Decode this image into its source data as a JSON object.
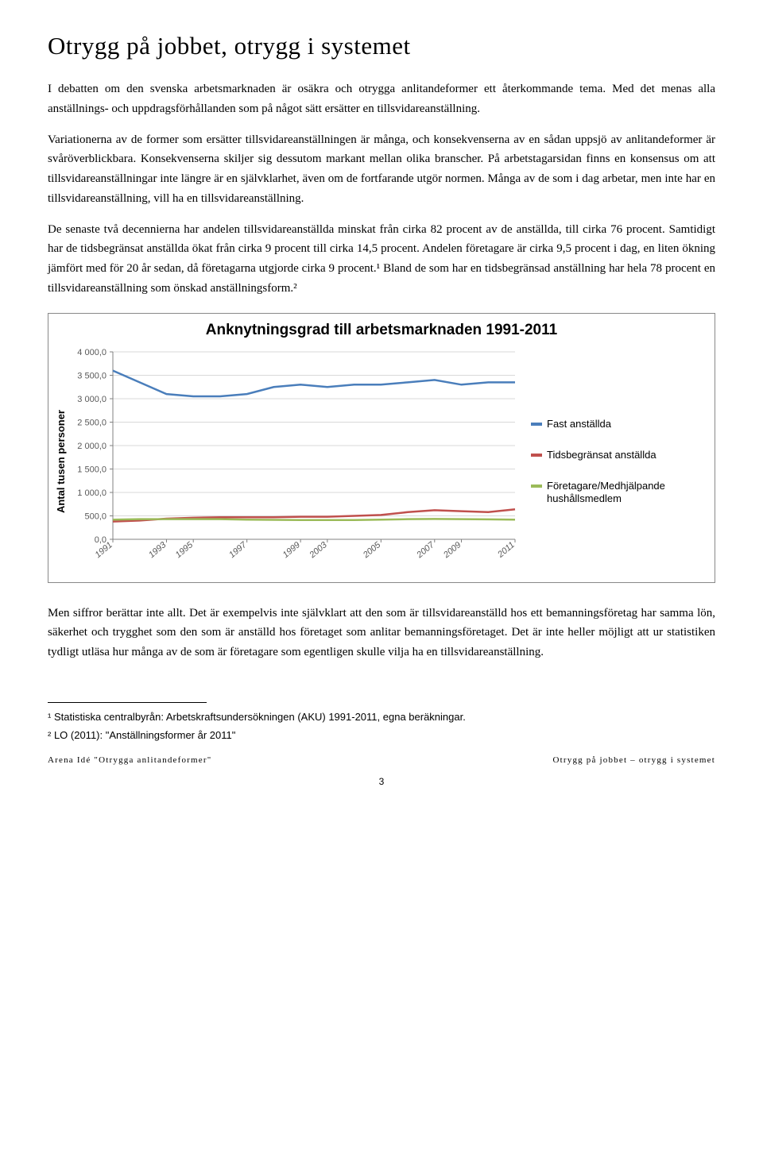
{
  "title": "Otrygg på jobbet, otrygg i systemet",
  "paragraphs": {
    "p1": "I debatten om den svenska arbetsmarknaden är osäkra och otrygga anlitandeformer ett återkommande tema. Med det menas alla anställnings- och uppdragsförhållanden som på något sätt ersätter en tillsvidareanställning.",
    "p2": "Variationerna av de former som ersätter tillsvidareanställningen är många, och konsekvenserna av en sådan uppsjö av anlitandeformer är svåröverblickbara. Konsekvenserna skiljer sig dessutom markant mellan olika branscher. På arbetstagarsidan finns en konsensus om att tillsvidareanställningar inte längre är en självklarhet, även om de fortfarande utgör normen. Många av de som i dag arbetar, men inte har en tillsvidareanställning, vill ha en tillsvidareanställning.",
    "p3": "De senaste två decennierna har andelen tillsvidareanställda minskat från cirka 82 procent av de anställda, till cirka 76 procent. Samtidigt har de tidsbegränsat anställda ökat från cirka 9 procent till cirka 14,5 procent. Andelen företagare är cirka 9,5 procent i dag, en liten ökning jämfört med för 20 år sedan, då företagarna utgjorde cirka 9 procent.¹ Bland de som har en tidsbegränsad anställning har hela 78 procent en tillsvidareanställning som önskad anställningsform.²",
    "p4": "Men siffror berättar inte allt. Det är exempelvis inte självklart att den som är tillsvidareanställd hos ett bemanningsföretag har samma lön, säkerhet och trygghet som den som är anställd hos företaget som anlitar bemanningsföretaget. Det är inte heller möjligt att ur statistiken tydligt utläsa hur många av de som är företagare som egentligen skulle vilja ha en tillsvidareanställning."
  },
  "chart": {
    "title": "Anknytningsgrad till arbetsmarknaden 1991-2011",
    "title_fontsize": 19,
    "ylabel": "Antal tusen personer",
    "ylim": [
      0,
      4000
    ],
    "yticks": [
      "0,0",
      "500,0",
      "1 000,0",
      "1 500,0",
      "2 000,0",
      "2 500,0",
      "3 000,0",
      "3 500,0",
      "4 000,0"
    ],
    "xlabels": [
      "1991",
      "1993",
      "1995",
      "1997",
      "1999",
      "2003",
      "2005",
      "2007",
      "2009",
      "2011"
    ],
    "series": [
      {
        "name": "Fast anställda",
        "color": "#4a7ebb",
        "values": [
          3600,
          3350,
          3100,
          3050,
          3050,
          3100,
          3250,
          3300,
          3250,
          3300,
          3300,
          3350,
          3400,
          3300,
          3350,
          3350
        ]
      },
      {
        "name": "Tidsbegränsat anställda",
        "color": "#c0504d",
        "values": [
          380,
          400,
          440,
          460,
          470,
          470,
          470,
          480,
          480,
          500,
          520,
          580,
          620,
          600,
          580,
          640
        ]
      },
      {
        "name": "Företagare/Medhjälpande hushållsmedlem",
        "color": "#9bbb59",
        "values": [
          420,
          430,
          430,
          430,
          430,
          420,
          415,
          410,
          410,
          410,
          420,
          430,
          435,
          430,
          425,
          420
        ]
      }
    ],
    "background": "#ffffff",
    "grid_color": "#d9d9d9",
    "axis_color": "#808080",
    "tick_color": "#595959"
  },
  "footnotes": {
    "fn1": "¹ Statistiska centralbyrån: Arbetskraftsundersökningen (AKU) 1991-2011, egna beräkningar.",
    "fn2": "² LO (2011): \"Anställningsformer år 2011\""
  },
  "footer": {
    "left": "Arena Idé \"Otrygga anlitandeformer\"",
    "right": "Otrygg på jobbet – otrygg i systemet"
  },
  "pagenum": "3"
}
